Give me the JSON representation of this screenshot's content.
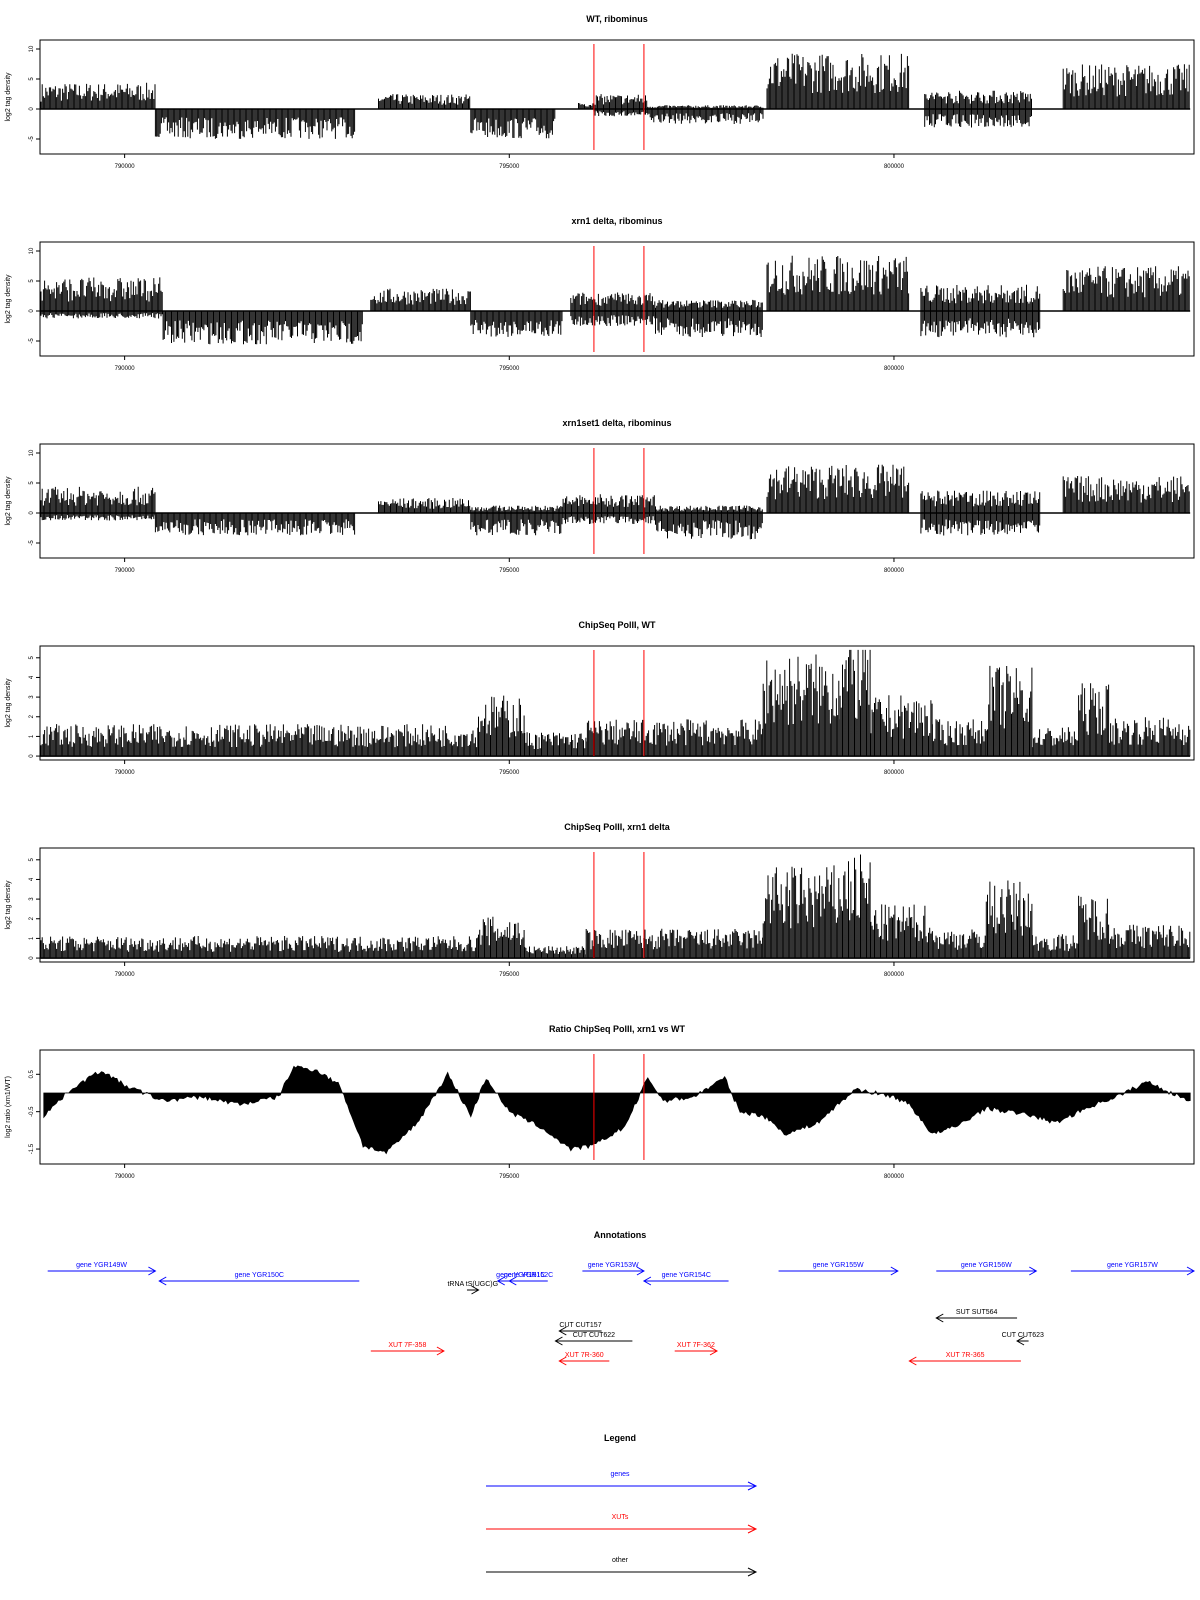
{
  "figure": {
    "panels": [
      {
        "title": "WT, ribominus",
        "ylabel": "log2 tag density"
      },
      {
        "title": "xrn1 delta, ribominus",
        "ylabel": "log2 tag density"
      },
      {
        "title": "xrn1set1 delta, ribominus",
        "ylabel": "log2 tag density"
      },
      {
        "title": "ChipSeq PolII, WT",
        "ylabel": "log2 tag density"
      },
      {
        "title": "ChipSeq PolII, xrn1 delta",
        "ylabel": "log2 tag density"
      },
      {
        "title": "Ratio ChipSeq PolII, xrn1 vs WT",
        "ylabel": "log2 ratio (xrn1/WT)"
      }
    ],
    "annotations_title": "Annotations",
    "legend_title": "Legend",
    "legend": [
      {
        "label": "genes",
        "color": "#0000ff"
      },
      {
        "label": "XUTs",
        "color": "#ff0000"
      },
      {
        "label": "other",
        "color": "#000000"
      }
    ]
  },
  "chart_data": [
    {
      "type": "bar",
      "title": "WT, ribominus",
      "ylabel": "log2 tag density",
      "xlim": [
        788900,
        803900
      ],
      "ylim": [
        -7.5,
        11.5
      ],
      "xticks": [
        790000,
        795000,
        800000
      ],
      "yticks": [
        10,
        5,
        0,
        -5
      ],
      "markers_x": [
        796100,
        796750
      ],
      "profile": [
        {
          "from": 788900,
          "to": 790400,
          "pos": 3.5,
          "neg": 0
        },
        {
          "from": 790400,
          "to": 793000,
          "pos": 0,
          "neg": -4
        },
        {
          "from": 793300,
          "to": 794500,
          "pos": 2,
          "neg": 0
        },
        {
          "from": 794500,
          "to": 795600,
          "pos": 0,
          "neg": -4
        },
        {
          "from": 795900,
          "to": 796100,
          "pos": 1,
          "neg": 0
        },
        {
          "from": 796100,
          "to": 796800,
          "pos": 2,
          "neg": -1
        },
        {
          "from": 796800,
          "to": 798300,
          "pos": 0.5,
          "neg": -2
        },
        {
          "from": 798350,
          "to": 800200,
          "pos": 7.5,
          "neg": 0
        },
        {
          "from": 800400,
          "to": 801800,
          "pos": 2.5,
          "neg": -2.5
        },
        {
          "from": 802200,
          "to": 803850,
          "pos": 6,
          "neg": 0
        }
      ]
    },
    {
      "type": "bar",
      "title": "xrn1 delta, ribominus",
      "ylabel": "log2 tag density",
      "xlim": [
        788900,
        803900
      ],
      "ylim": [
        -7.5,
        11.5
      ],
      "xticks": [
        790000,
        795000,
        800000
      ],
      "yticks": [
        10,
        5,
        0,
        -5
      ],
      "markers_x": [
        796100,
        796750
      ],
      "profile": [
        {
          "from": 788900,
          "to": 790500,
          "pos": 4.5,
          "neg": -1
        },
        {
          "from": 790500,
          "to": 793100,
          "pos": 0,
          "neg": -4.5
        },
        {
          "from": 793200,
          "to": 794500,
          "pos": 3,
          "neg": 0
        },
        {
          "from": 794500,
          "to": 795700,
          "pos": 0,
          "neg": -3.5
        },
        {
          "from": 795800,
          "to": 796900,
          "pos": 2.5,
          "neg": -2
        },
        {
          "from": 796900,
          "to": 798300,
          "pos": 1.5,
          "neg": -3.5
        },
        {
          "from": 798350,
          "to": 800200,
          "pos": 7.5,
          "neg": 0
        },
        {
          "from": 800350,
          "to": 801900,
          "pos": 3.5,
          "neg": -3.5
        },
        {
          "from": 802200,
          "to": 803850,
          "pos": 6,
          "neg": 0
        }
      ]
    },
    {
      "type": "bar",
      "title": "xrn1set1 delta, ribominus",
      "ylabel": "log2 tag density",
      "xlim": [
        788900,
        803900
      ],
      "ylim": [
        -7.5,
        11.5
      ],
      "xticks": [
        790000,
        795000,
        800000
      ],
      "yticks": [
        10,
        5,
        0,
        -5
      ],
      "markers_x": [
        796100,
        796750
      ],
      "profile": [
        {
          "from": 788900,
          "to": 790400,
          "pos": 3.5,
          "neg": -1
        },
        {
          "from": 790400,
          "to": 793000,
          "pos": 0,
          "neg": -3
        },
        {
          "from": 793300,
          "to": 794500,
          "pos": 2,
          "neg": 0
        },
        {
          "from": 794500,
          "to": 795700,
          "pos": 1,
          "neg": -3
        },
        {
          "from": 795700,
          "to": 796900,
          "pos": 2.5,
          "neg": -1.5
        },
        {
          "from": 796900,
          "to": 798300,
          "pos": 1,
          "neg": -3.5
        },
        {
          "from": 798350,
          "to": 800200,
          "pos": 6.5,
          "neg": 0
        },
        {
          "from": 800350,
          "to": 801900,
          "pos": 3,
          "neg": -3
        },
        {
          "from": 802200,
          "to": 803850,
          "pos": 5,
          "neg": 0
        }
      ]
    },
    {
      "type": "bar",
      "title": "ChipSeq PolII, WT",
      "ylabel": "log2 tag density",
      "xlim": [
        788900,
        803900
      ],
      "ylim": [
        -0.2,
        5.6
      ],
      "xticks": [
        790000,
        795000,
        800000
      ],
      "yticks": [
        5,
        4,
        3,
        2,
        1,
        0
      ],
      "markers_x": [
        796100,
        796750
      ],
      "profile": [
        {
          "from": 788900,
          "to": 794600,
          "pos": 1.3,
          "neg": 0
        },
        {
          "from": 794600,
          "to": 795200,
          "pos": 2.5,
          "neg": 0
        },
        {
          "from": 795200,
          "to": 796000,
          "pos": 1.0,
          "neg": 0
        },
        {
          "from": 796000,
          "to": 798300,
          "pos": 1.5,
          "neg": 0
        },
        {
          "from": 798300,
          "to": 799300,
          "pos": 4.2,
          "neg": 0
        },
        {
          "from": 799300,
          "to": 799700,
          "pos": 4.8,
          "neg": 0
        },
        {
          "from": 799700,
          "to": 800500,
          "pos": 2.5,
          "neg": 0
        },
        {
          "from": 800500,
          "to": 801200,
          "pos": 1.5,
          "neg": 0
        },
        {
          "from": 801200,
          "to": 801800,
          "pos": 3.7,
          "neg": 0
        },
        {
          "from": 801800,
          "to": 802400,
          "pos": 1.2,
          "neg": 0
        },
        {
          "from": 802400,
          "to": 802800,
          "pos": 3.0,
          "neg": 0
        },
        {
          "from": 802800,
          "to": 803850,
          "pos": 1.6,
          "neg": 0
        }
      ]
    },
    {
      "type": "bar",
      "title": "ChipSeq PolII, xrn1 delta",
      "ylabel": "log2 tag density",
      "xlim": [
        788900,
        803900
      ],
      "ylim": [
        -0.2,
        5.6
      ],
      "xticks": [
        790000,
        795000,
        800000
      ],
      "yticks": [
        5,
        4,
        3,
        2,
        1,
        0
      ],
      "markers_x": [
        796100,
        796750
      ],
      "profile": [
        {
          "from": 788900,
          "to": 794600,
          "pos": 0.9,
          "neg": 0
        },
        {
          "from": 794600,
          "to": 795200,
          "pos": 1.7,
          "neg": 0
        },
        {
          "from": 795200,
          "to": 796000,
          "pos": 0.5,
          "neg": 0
        },
        {
          "from": 796000,
          "to": 798300,
          "pos": 1.2,
          "neg": 0
        },
        {
          "from": 798300,
          "to": 799300,
          "pos": 3.8,
          "neg": 0
        },
        {
          "from": 799300,
          "to": 799700,
          "pos": 4.3,
          "neg": 0
        },
        {
          "from": 799700,
          "to": 800500,
          "pos": 2.2,
          "neg": 0
        },
        {
          "from": 800500,
          "to": 801200,
          "pos": 1.2,
          "neg": 0
        },
        {
          "from": 801200,
          "to": 801800,
          "pos": 3.2,
          "neg": 0
        },
        {
          "from": 801800,
          "to": 802400,
          "pos": 1.0,
          "neg": 0
        },
        {
          "from": 802400,
          "to": 802800,
          "pos": 2.6,
          "neg": 0
        },
        {
          "from": 802800,
          "to": 803850,
          "pos": 1.4,
          "neg": 0
        }
      ]
    },
    {
      "type": "area",
      "title": "Ratio ChipSeq PolII, xrn1 vs WT",
      "ylabel": "log2 ratio (xrn1/WT)",
      "xlim": [
        788900,
        803900
      ],
      "ylim": [
        -1.9,
        1.15
      ],
      "xticks": [
        790000,
        795000,
        800000
      ],
      "yticks": [
        0.5,
        -0.5,
        -1.5
      ],
      "markers_x": [
        796100,
        796750
      ],
      "x": [
        788950,
        789300,
        789700,
        790000,
        790500,
        791000,
        791500,
        792000,
        792200,
        792500,
        792800,
        793100,
        793400,
        793800,
        794200,
        794500,
        794700,
        795000,
        795400,
        795800,
        796100,
        796500,
        796800,
        797000,
        797400,
        797800,
        798000,
        798300,
        798600,
        799000,
        799500,
        800000,
        800200,
        800500,
        800800,
        801200,
        801800,
        802100,
        802500,
        803000,
        803300,
        803600,
        803850
      ],
      "y": [
        -0.6,
        0.1,
        0.6,
        0.2,
        -0.2,
        -0.1,
        -0.3,
        -0.1,
        0.7,
        0.6,
        0.2,
        -1.4,
        -1.6,
        -0.8,
        0.5,
        -0.6,
        0.4,
        -0.5,
        -0.9,
        -1.5,
        -1.4,
        -0.9,
        0.4,
        -0.2,
        -0.1,
        0.4,
        -0.5,
        -0.6,
        -1.1,
        -0.8,
        0.1,
        -0.1,
        -0.3,
        -1.1,
        -0.9,
        -0.4,
        -0.6,
        -0.8,
        -0.4,
        0.0,
        0.3,
        0.0,
        -0.2
      ]
    }
  ],
  "annotations": [
    {
      "label": "gene YGR149W",
      "x1": 789000,
      "x2": 790400,
      "dir": "right",
      "color": "#0000ff",
      "row": 0
    },
    {
      "label": "gene YGR150C",
      "x1": 790450,
      "x2": 793050,
      "dir": "left",
      "color": "#0000ff",
      "row": 1
    },
    {
      "label": "gene YGR151C",
      "x1": 794850,
      "x2": 795450,
      "dir": "left",
      "color": "#0000ff",
      "row": 1
    },
    {
      "label": "gene YGR152C",
      "x1": 795000,
      "x2": 795500,
      "dir": "left",
      "color": "#0000ff",
      "row": 1
    },
    {
      "label": "gene YGR153W",
      "x1": 795950,
      "x2": 796750,
      "dir": "right",
      "color": "#0000ff",
      "row": 0
    },
    {
      "label": "gene YGR154C",
      "x1": 796750,
      "x2": 797850,
      "dir": "left",
      "color": "#0000ff",
      "row": 1
    },
    {
      "label": "gene YGR155W",
      "x1": 798500,
      "x2": 800050,
      "dir": "right",
      "color": "#0000ff",
      "row": 0
    },
    {
      "label": "gene YGR156W",
      "x1": 800550,
      "x2": 801850,
      "dir": "right",
      "color": "#0000ff",
      "row": 0
    },
    {
      "label": "gene YGR157W",
      "x1": 802300,
      "x2": 803900,
      "dir": "right",
      "color": "#0000ff",
      "row": 0
    },
    {
      "label": "tRNA tS(UGC)G",
      "x1": 794450,
      "x2": 794600,
      "dir": "right",
      "color": "#000000",
      "row": 2
    },
    {
      "label": "CUT CUT157",
      "x1": 795650,
      "x2": 796200,
      "dir": "left",
      "color": "#000000",
      "row": 5
    },
    {
      "label": "CUT CUT622",
      "x1": 795600,
      "x2": 796600,
      "dir": "left",
      "color": "#000000",
      "row": 6
    },
    {
      "label": "SUT SUT564",
      "x1": 800550,
      "x2": 801600,
      "dir": "left",
      "color": "#000000",
      "row": 4
    },
    {
      "label": "CUT CUT623",
      "x1": 801600,
      "x2": 801750,
      "dir": "left",
      "color": "#000000",
      "row": 6
    },
    {
      "label": "XUT 7F-358",
      "x1": 793200,
      "x2": 794150,
      "dir": "right",
      "color": "#ff0000",
      "row": 7
    },
    {
      "label": "XUT 7R-360",
      "x1": 795650,
      "x2": 796300,
      "dir": "left",
      "color": "#ff0000",
      "row": 8
    },
    {
      "label": "XUT 7F-362",
      "x1": 797150,
      "x2": 797700,
      "dir": "right",
      "color": "#ff0000",
      "row": 7
    },
    {
      "label": "XUT 7R-365",
      "x1": 800200,
      "x2": 801650,
      "dir": "left",
      "color": "#ff0000",
      "row": 8
    }
  ]
}
